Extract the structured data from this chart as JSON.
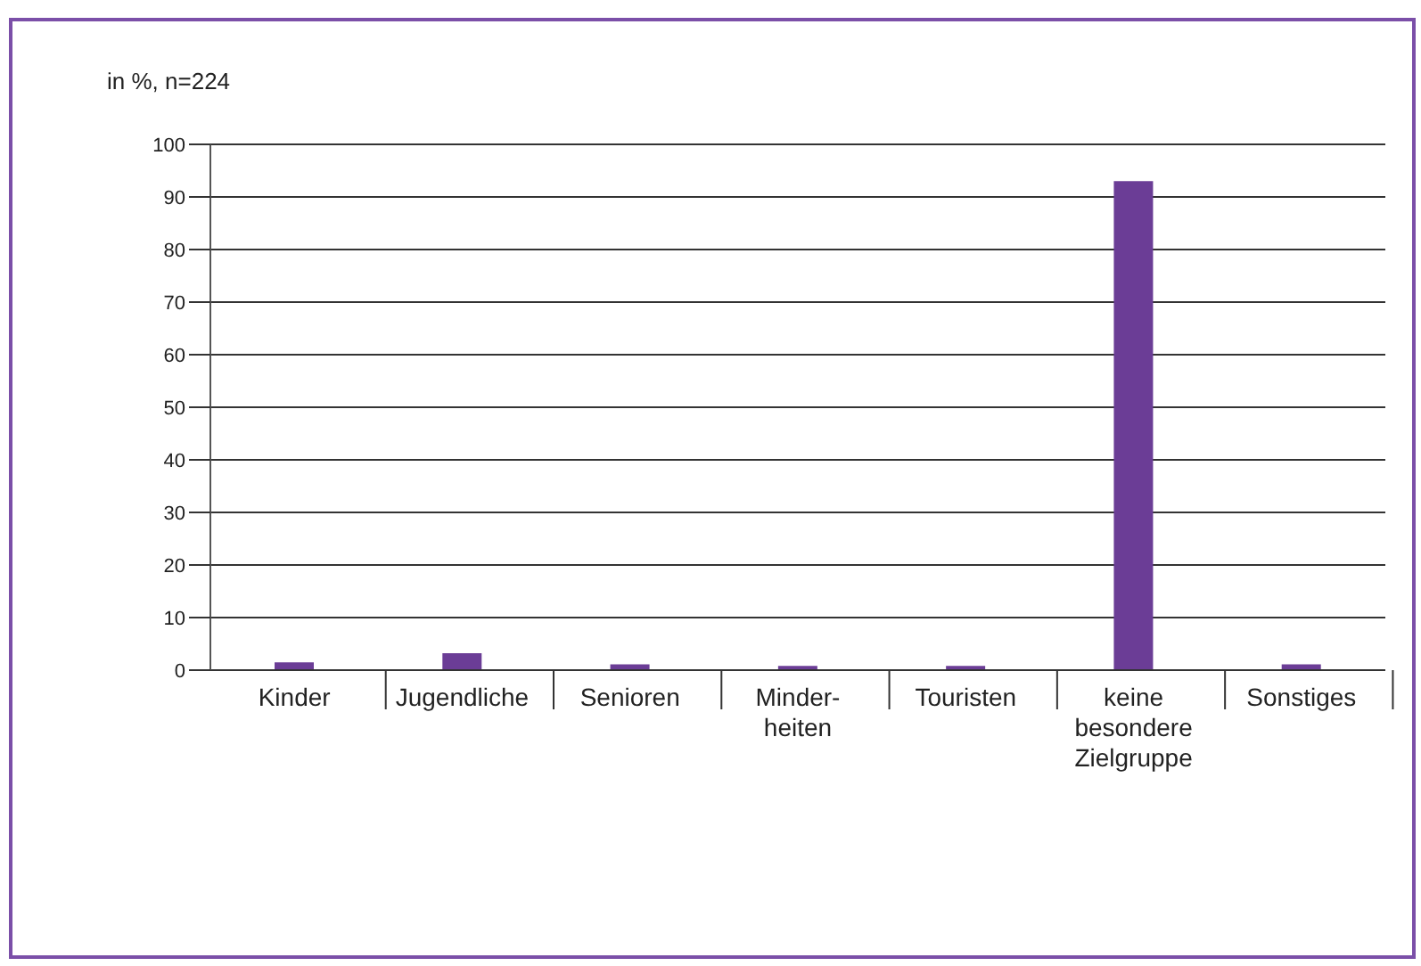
{
  "chart_data": {
    "type": "bar",
    "ylabel": "in %, n=224",
    "categories": [
      "Kinder",
      "Jugendliche",
      "Senioren",
      "Minder-\nheiten",
      "Touristen",
      "keine\nbesondere\nZielgruppe",
      "Sonstiges"
    ],
    "values": [
      1.5,
      3.2,
      1.1,
      0.8,
      0.8,
      93,
      1.1
    ],
    "color": "#6b3d96",
    "ylim": [
      0,
      100
    ],
    "yticks": [
      0,
      10,
      20,
      30,
      40,
      50,
      60,
      70,
      80,
      90,
      100
    ],
    "grid": "y"
  }
}
